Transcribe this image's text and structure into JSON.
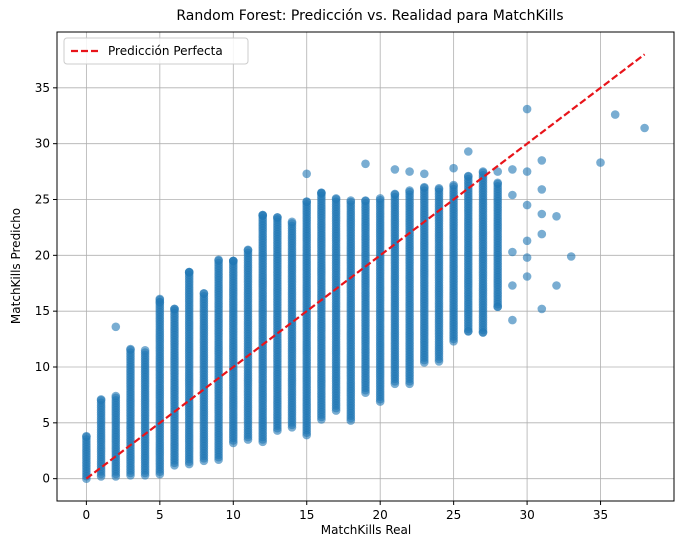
{
  "chart_data": {
    "type": "scatter",
    "title": "Random Forest: Predicción vs. Realidad para MatchKills",
    "xlabel": "MatchKills Real",
    "ylabel": "MatchKills Predicho",
    "xlim": [
      -2,
      40
    ],
    "ylim": [
      -2,
      40
    ],
    "xticks": [
      0,
      5,
      10,
      15,
      20,
      25,
      30,
      35
    ],
    "yticks": [
      0,
      5,
      10,
      15,
      20,
      25,
      30,
      35
    ],
    "grid": true,
    "legend_position": "top-left",
    "legend": [
      {
        "label": "Predicción Perfecta",
        "style": "dashed",
        "color": "#e8141a"
      }
    ],
    "reference_line": {
      "name": "Predicción Perfecta",
      "x": [
        0,
        38
      ],
      "y": [
        0,
        38
      ],
      "color": "#e8141a",
      "style": "dashed"
    },
    "series": [
      {
        "color": "#1f77b4",
        "columns": [
          {
            "x": 0,
            "y_min": 0.0,
            "y_max": 3.8
          },
          {
            "x": 1,
            "y_min": 0.2,
            "y_max": 7.1
          },
          {
            "x": 2,
            "y_min": 0.2,
            "y_max": 7.4
          },
          {
            "x": 3,
            "y_min": 0.3,
            "y_max": 11.6
          },
          {
            "x": 4,
            "y_min": 0.3,
            "y_max": 11.5
          },
          {
            "x": 5,
            "y_min": 0.4,
            "y_max": 16.1
          },
          {
            "x": 6,
            "y_min": 1.2,
            "y_max": 15.2
          },
          {
            "x": 7,
            "y_min": 1.3,
            "y_max": 18.5
          },
          {
            "x": 8,
            "y_min": 1.6,
            "y_max": 16.6
          },
          {
            "x": 9,
            "y_min": 1.7,
            "y_max": 19.6
          },
          {
            "x": 10,
            "y_min": 3.2,
            "y_max": 19.5
          },
          {
            "x": 11,
            "y_min": 3.5,
            "y_max": 20.5
          },
          {
            "x": 12,
            "y_min": 3.3,
            "y_max": 23.6
          },
          {
            "x": 13,
            "y_min": 4.3,
            "y_max": 23.4
          },
          {
            "x": 14,
            "y_min": 4.6,
            "y_max": 23.0
          },
          {
            "x": 15,
            "y_min": 3.9,
            "y_max": 24.8
          },
          {
            "x": 16,
            "y_min": 5.3,
            "y_max": 25.6
          },
          {
            "x": 17,
            "y_min": 6.1,
            "y_max": 25.1
          },
          {
            "x": 18,
            "y_min": 5.2,
            "y_max": 24.9
          },
          {
            "x": 19,
            "y_min": 7.7,
            "y_max": 24.9
          },
          {
            "x": 20,
            "y_min": 6.9,
            "y_max": 25.1
          },
          {
            "x": 21,
            "y_min": 8.5,
            "y_max": 25.5
          },
          {
            "x": 22,
            "y_min": 8.5,
            "y_max": 25.8
          },
          {
            "x": 23,
            "y_min": 10.4,
            "y_max": 26.1
          },
          {
            "x": 24,
            "y_min": 10.5,
            "y_max": 26.0
          },
          {
            "x": 25,
            "y_min": 12.3,
            "y_max": 26.3
          },
          {
            "x": 26,
            "y_min": 13.2,
            "y_max": 27.1
          },
          {
            "x": 27,
            "y_min": 13.1,
            "y_max": 27.5
          },
          {
            "x": 28,
            "y_min": 15.4,
            "y_max": 26.5
          }
        ],
        "points": [
          [
            2,
            13.6
          ],
          [
            5,
            15.8
          ],
          [
            6,
            15.2
          ],
          [
            7,
            18.5
          ],
          [
            10,
            19.5
          ],
          [
            12,
            23.6
          ],
          [
            13,
            23.4
          ],
          [
            15,
            27.3
          ],
          [
            16,
            25.6
          ],
          [
            19,
            28.2
          ],
          [
            21,
            27.7
          ],
          [
            22,
            27.5
          ],
          [
            23,
            27.3
          ],
          [
            25,
            27.8
          ],
          [
            26,
            29.3
          ],
          [
            26,
            13.2
          ],
          [
            27,
            13.1
          ],
          [
            28,
            15.4
          ],
          [
            28,
            27.5
          ],
          [
            29,
            27.7
          ],
          [
            29,
            14.2
          ],
          [
            29,
            17.3
          ],
          [
            29,
            20.3
          ],
          [
            29,
            25.4
          ],
          [
            30,
            33.1
          ],
          [
            30,
            27.5
          ],
          [
            30,
            24.5
          ],
          [
            30,
            21.3
          ],
          [
            30,
            19.8
          ],
          [
            30,
            18.1
          ],
          [
            31,
            28.5
          ],
          [
            31,
            25.9
          ],
          [
            31,
            23.7
          ],
          [
            31,
            21.9
          ],
          [
            31,
            15.2
          ],
          [
            32,
            23.5
          ],
          [
            32,
            17.3
          ],
          [
            33,
            19.9
          ],
          [
            35,
            28.3
          ],
          [
            36,
            32.6
          ],
          [
            38,
            31.4
          ]
        ]
      }
    ]
  }
}
